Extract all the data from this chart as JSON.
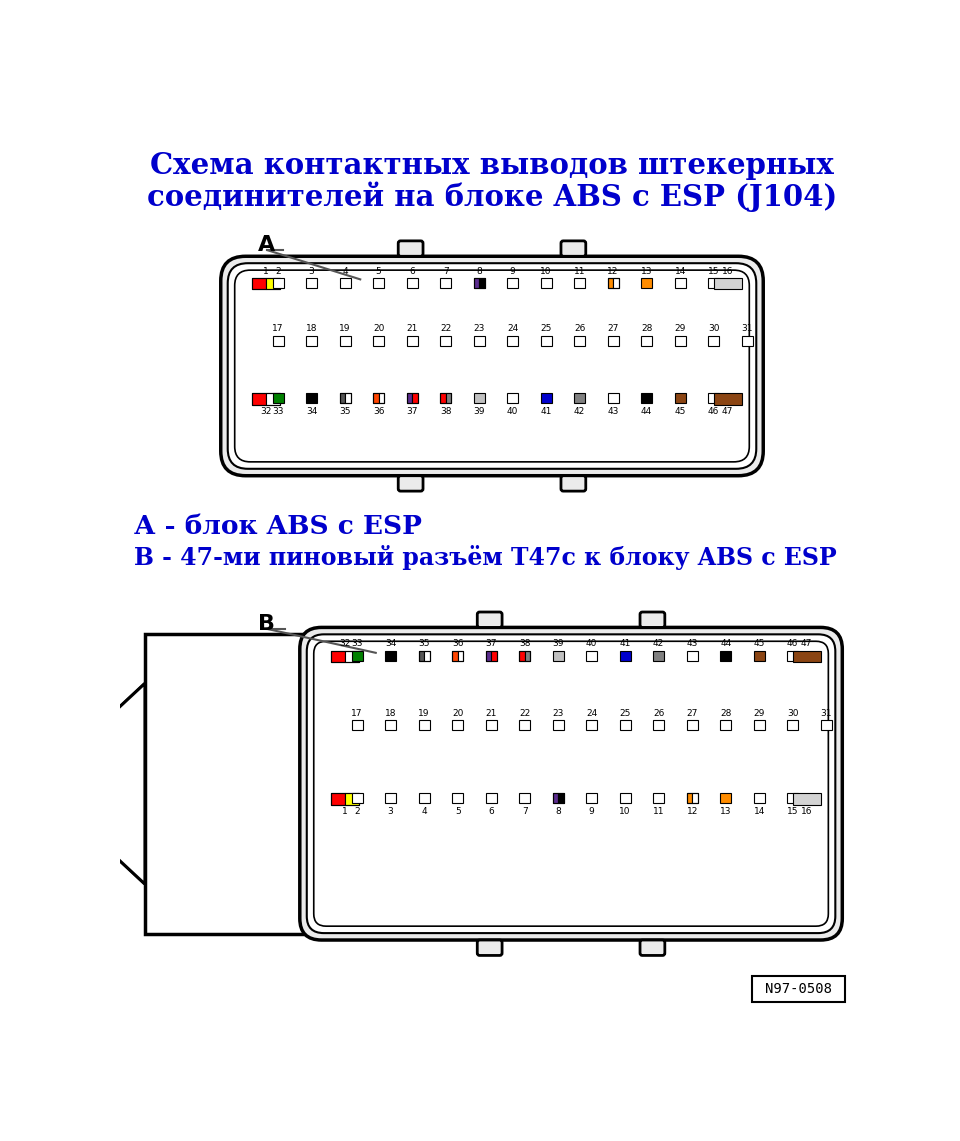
{
  "title_line1": "Схема контактных выводов штекерных",
  "title_line2": "соединителей на блоке ABS с ESP (J104)",
  "title_color": "#0000CC",
  "label_A": "А",
  "label_B": "В",
  "legend_A": "А - блок ABS с ESP",
  "legend_B": "В - 47-ми пиновый разъём Т47с к блоку ABS с ESP",
  "watermark": "N97-0508",
  "bg_color": "#FFFFFF",
  "row1_pins": [
    1,
    2,
    3,
    4,
    5,
    6,
    7,
    8,
    9,
    10,
    11,
    12,
    13,
    14,
    15,
    16
  ],
  "row1_colors": [
    "#FF0000|#FFFF00",
    "",
    "",
    "",
    "",
    "",
    "",
    "#5B2D8E|#000000",
    "",
    "",
    "",
    "#FF8C00|#FFFFFF",
    "#FF8C00",
    "",
    "",
    "#D3D3D3"
  ],
  "row2_pins": [
    17,
    18,
    19,
    20,
    21,
    22,
    23,
    24,
    25,
    26,
    27,
    28,
    29,
    30,
    31
  ],
  "row2_colors": [
    "",
    "",
    "",
    "",
    "",
    "",
    "",
    "",
    "",
    "",
    "",
    "",
    "",
    "",
    ""
  ],
  "row3_pins": [
    32,
    33,
    34,
    35,
    36,
    37,
    38,
    39,
    40,
    41,
    42,
    43,
    44,
    45,
    46,
    47
  ],
  "row3_colors": [
    "#FF0000|#FFFFFF",
    "#008000",
    "#000000",
    "#555555|#FFFFFF",
    "#FF4500|#FFFFFF",
    "#5B2D8E|#FF0000",
    "#FF0000|#808080",
    "#C0C0C0",
    "",
    "#0000CD",
    "#808080",
    "",
    "#000000",
    "#8B4513",
    "",
    "#8B4513"
  ]
}
